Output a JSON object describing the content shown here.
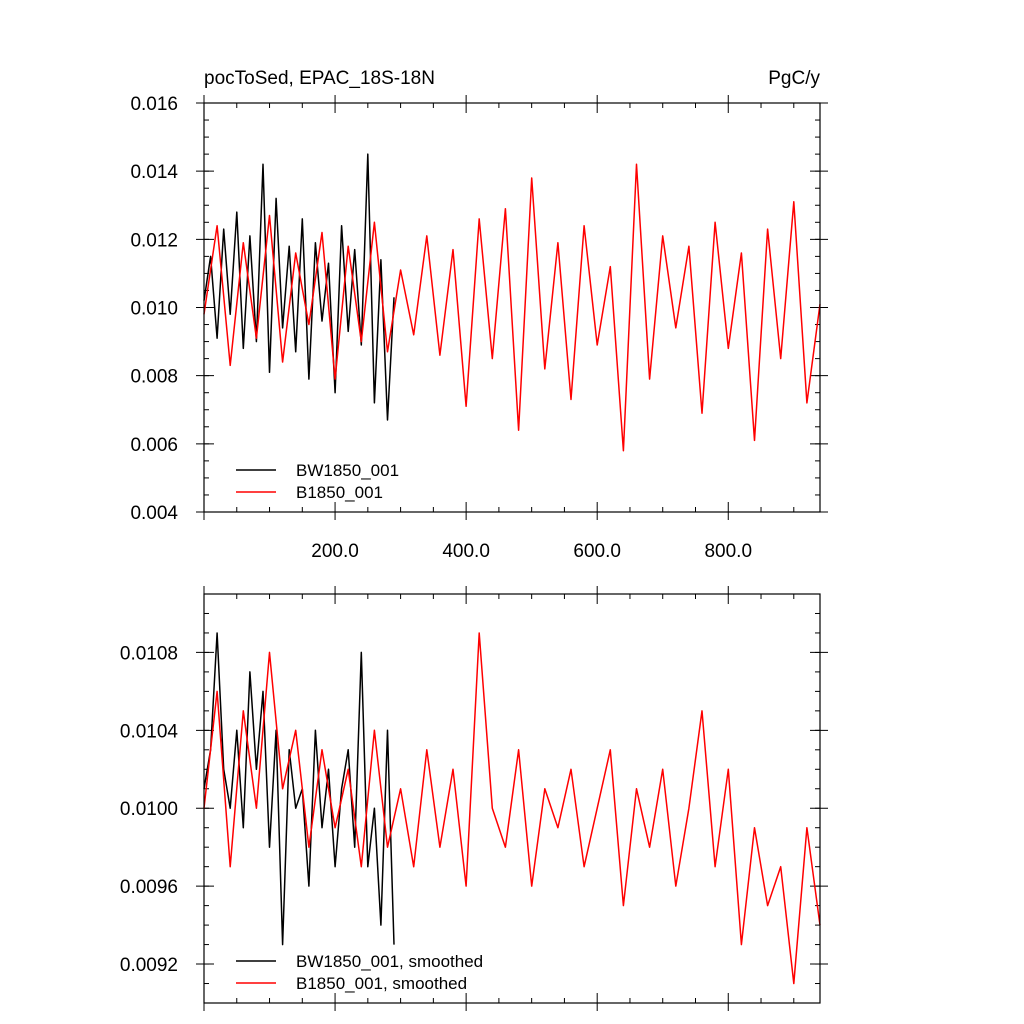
{
  "chart_data": [
    {
      "type": "line",
      "title_left": "pocToSed, EPAC_18S-18N",
      "title_right": "PgC/y",
      "xlim": [
        0,
        940
      ],
      "ylim": [
        0.004,
        0.016
      ],
      "x_ticks": [
        200,
        400,
        600,
        800
      ],
      "x_tick_labels": [
        "200.0",
        "400.0",
        "600.0",
        "800.0"
      ],
      "y_ticks": [
        0.004,
        0.006,
        0.008,
        0.01,
        0.012,
        0.014,
        0.016
      ],
      "y_tick_labels": [
        "0.004",
        "0.006",
        "0.008",
        "0.010",
        "0.012",
        "0.014",
        "0.016"
      ],
      "legend_placement": "bottom-left",
      "series": [
        {
          "name": "BW1850_001",
          "color": "#000000",
          "x": [
            0,
            10,
            20,
            30,
            40,
            50,
            60,
            70,
            80,
            90,
            100,
            110,
            120,
            130,
            140,
            150,
            160,
            170,
            180,
            190,
            200,
            210,
            220,
            230,
            240,
            250,
            260,
            270,
            280,
            290
          ],
          "values": [
            0.0102,
            0.0115,
            0.0091,
            0.0123,
            0.0098,
            0.0128,
            0.0088,
            0.0121,
            0.009,
            0.0142,
            0.0081,
            0.0132,
            0.0094,
            0.0118,
            0.0087,
            0.0126,
            0.0079,
            0.0119,
            0.0096,
            0.0113,
            0.0075,
            0.0124,
            0.0093,
            0.0117,
            0.0089,
            0.0145,
            0.0072,
            0.0114,
            0.0067,
            0.0103
          ]
        },
        {
          "name": "B1850_001",
          "color": "#ff0000",
          "x": [
            0,
            20,
            40,
            60,
            80,
            100,
            120,
            140,
            160,
            180,
            200,
            220,
            240,
            260,
            280,
            300,
            320,
            340,
            360,
            380,
            400,
            420,
            440,
            460,
            480,
            500,
            520,
            540,
            560,
            580,
            600,
            620,
            640,
            660,
            680,
            700,
            720,
            740,
            760,
            780,
            800,
            820,
            840,
            860,
            880,
            900,
            920,
            940
          ],
          "values": [
            0.0098,
            0.0124,
            0.0083,
            0.0119,
            0.0091,
            0.0127,
            0.0084,
            0.0116,
            0.0095,
            0.0122,
            0.0079,
            0.0118,
            0.009,
            0.0125,
            0.0087,
            0.0111,
            0.0092,
            0.0121,
            0.0086,
            0.0117,
            0.0071,
            0.0126,
            0.0085,
            0.0129,
            0.0064,
            0.0138,
            0.0082,
            0.0119,
            0.0073,
            0.0124,
            0.0089,
            0.0112,
            0.0058,
            0.0142,
            0.0079,
            0.0121,
            0.0094,
            0.0118,
            0.0069,
            0.0125,
            0.0088,
            0.0116,
            0.0061,
            0.0123,
            0.0085,
            0.0131,
            0.0072,
            0.0101
          ]
        }
      ]
    },
    {
      "type": "line",
      "xlim": [
        0,
        940
      ],
      "ylim": [
        0.009,
        0.0111
      ],
      "x_ticks": [
        200,
        400,
        600,
        800
      ],
      "y_ticks": [
        0.0092,
        0.0096,
        0.01,
        0.0104,
        0.0108
      ],
      "y_tick_labels": [
        "0.0092",
        "0.0096",
        "0.0100",
        "0.0104",
        "0.0108"
      ],
      "legend_placement": "bottom-left",
      "series": [
        {
          "name": "BW1850_001, smoothed",
          "color": "#000000",
          "x": [
            0,
            10,
            20,
            30,
            40,
            50,
            60,
            70,
            80,
            90,
            100,
            110,
            120,
            130,
            140,
            150,
            160,
            170,
            180,
            190,
            200,
            210,
            220,
            230,
            240,
            250,
            260,
            270,
            280,
            290
          ],
          "values": [
            0.0101,
            0.0103,
            0.0109,
            0.0102,
            0.01,
            0.0104,
            0.0099,
            0.0107,
            0.0102,
            0.0106,
            0.0098,
            0.0104,
            0.0093,
            0.0103,
            0.01,
            0.0101,
            0.0096,
            0.0104,
            0.0099,
            0.0102,
            0.0097,
            0.0101,
            0.0103,
            0.0098,
            0.0108,
            0.0097,
            0.01,
            0.0094,
            0.0104,
            0.0093
          ]
        },
        {
          "name": "B1850_001, smoothed",
          "color": "#ff0000",
          "x": [
            0,
            20,
            40,
            60,
            80,
            100,
            120,
            140,
            160,
            180,
            200,
            220,
            240,
            260,
            280,
            300,
            320,
            340,
            360,
            380,
            400,
            420,
            440,
            460,
            480,
            500,
            520,
            540,
            560,
            580,
            600,
            620,
            640,
            660,
            680,
            700,
            720,
            740,
            760,
            780,
            800,
            820,
            840,
            860,
            880,
            900,
            920,
            940
          ],
          "values": [
            0.01,
            0.0106,
            0.0097,
            0.0105,
            0.01,
            0.0108,
            0.0101,
            0.0104,
            0.0098,
            0.0103,
            0.0099,
            0.0102,
            0.0097,
            0.0104,
            0.0098,
            0.0101,
            0.0097,
            0.0103,
            0.0098,
            0.0102,
            0.0096,
            0.0109,
            0.01,
            0.0098,
            0.0103,
            0.0096,
            0.0101,
            0.0099,
            0.0102,
            0.0097,
            0.01,
            0.0103,
            0.0095,
            0.0101,
            0.0098,
            0.0102,
            0.0096,
            0.01,
            0.0105,
            0.0097,
            0.0102,
            0.0093,
            0.0099,
            0.0095,
            0.0097,
            0.0091,
            0.0099,
            0.0094
          ]
        }
      ]
    }
  ]
}
